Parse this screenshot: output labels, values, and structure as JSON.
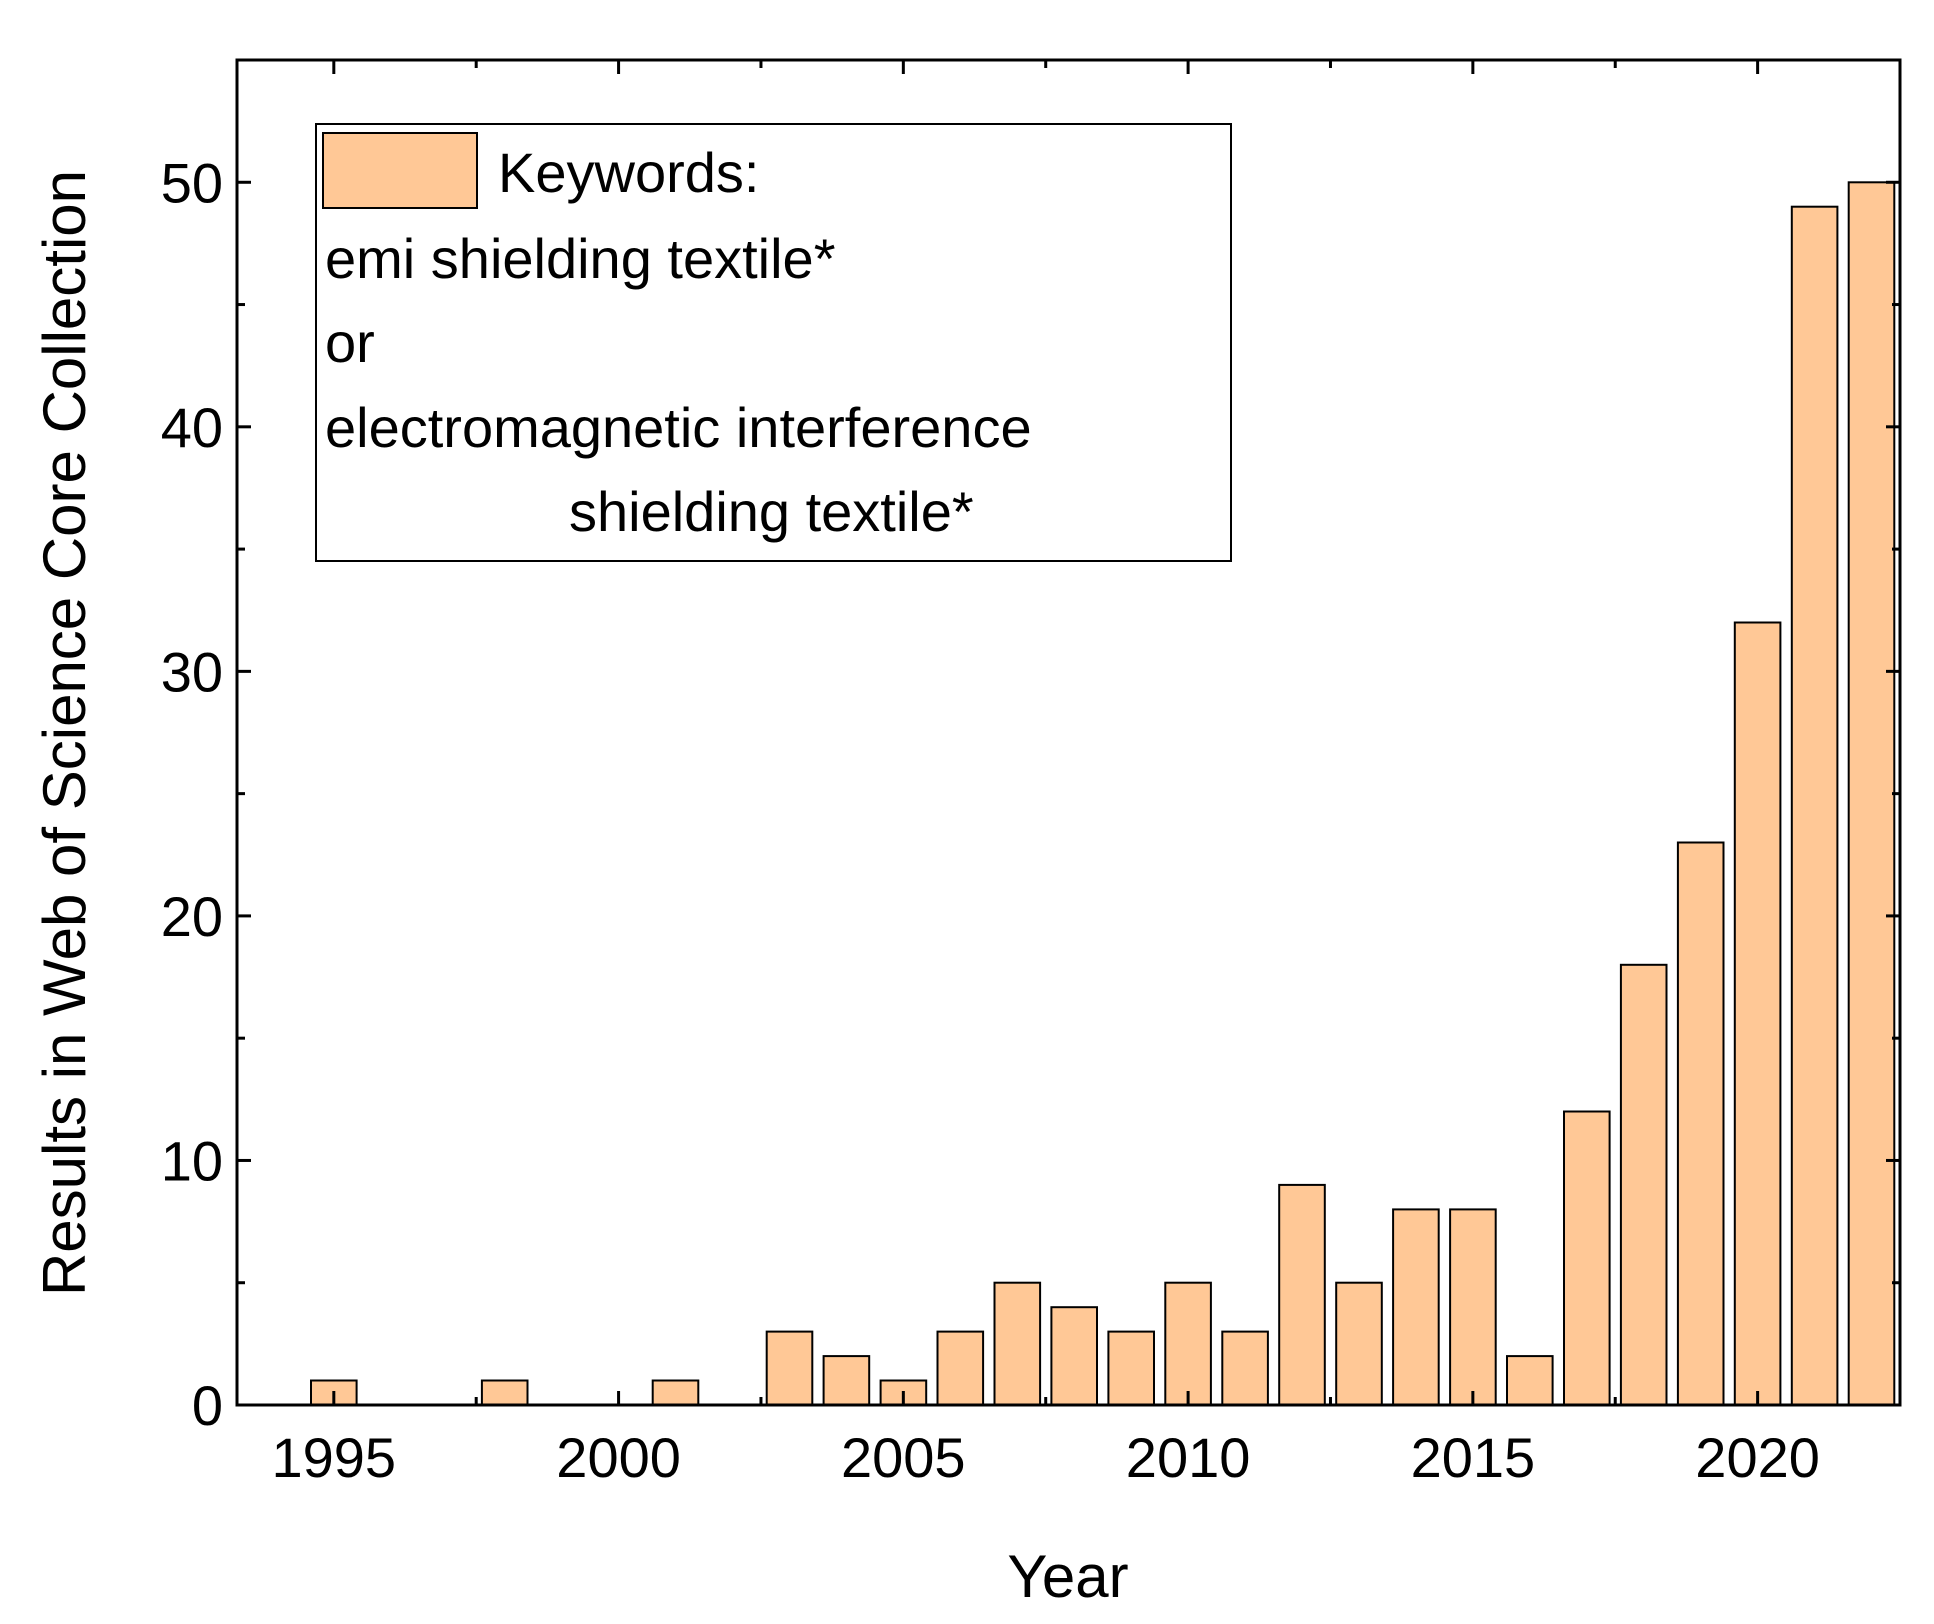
{
  "chart_data": {
    "type": "bar",
    "title": "",
    "xlabel": "Year",
    "ylabel": "Results in Web of Science Core Collection",
    "x": [
      1995,
      1998,
      2001,
      2003,
      2004,
      2005,
      2006,
      2007,
      2008,
      2009,
      2010,
      2011,
      2012,
      2013,
      2014,
      2015,
      2016,
      2017,
      2018,
      2019,
      2020,
      2021,
      2022
    ],
    "values": [
      1,
      1,
      1,
      3,
      2,
      1,
      3,
      5,
      4,
      3,
      5,
      3,
      9,
      5,
      8,
      8,
      2,
      12,
      18,
      23,
      32,
      49,
      50
    ],
    "xlim": [
      1993.3,
      2022.5
    ],
    "ylim": [
      0,
      55
    ],
    "x_ticks": [
      1995,
      2000,
      2005,
      2010,
      2015,
      2020
    ],
    "x_tick_labels": [
      "1995",
      "2000",
      "2005",
      "2010",
      "2015",
      "2020"
    ],
    "y_ticks": [
      0,
      10,
      20,
      30,
      40,
      50
    ],
    "y_tick_labels": [
      "0",
      "10",
      "20",
      "30",
      "40",
      "50"
    ],
    "grid": false,
    "legend": {
      "position": "top-left",
      "lines": [
        "Keywords:",
        "emi shielding textile*",
        "or",
        "electromagnetic interference",
        "shielding textile*"
      ]
    },
    "colors": {
      "bar_fill": "#FFC896",
      "bar_stroke": "#000000",
      "axis": "#000000"
    }
  }
}
